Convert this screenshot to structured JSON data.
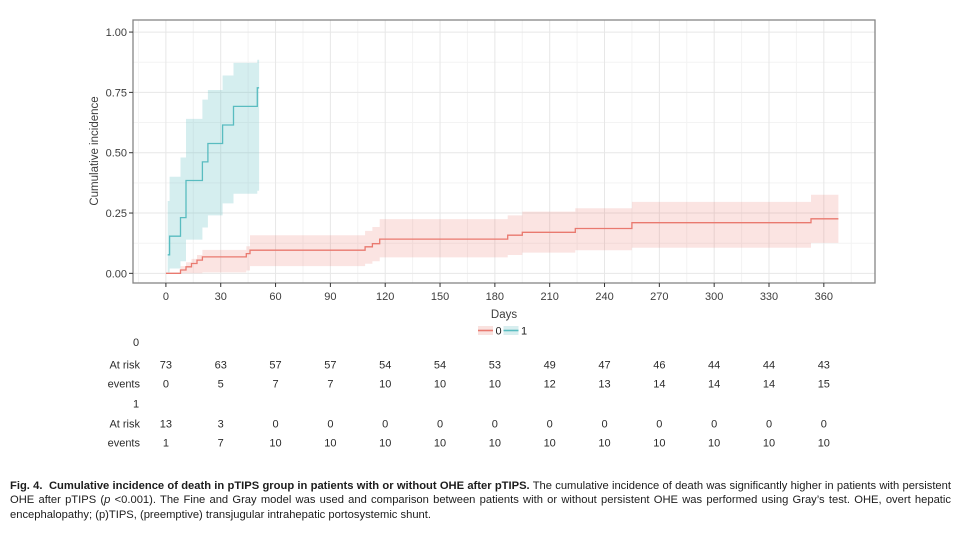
{
  "chart_data": {
    "type": "line",
    "subtype": "cumulative-incidence-step-with-confidence-bands",
    "title": "",
    "xlabel": "Days",
    "ylabel": "Cumulative incidence",
    "xlim": [
      -18,
      388
    ],
    "ylim": [
      -0.04,
      1.05
    ],
    "xticks": [
      0,
      30,
      60,
      90,
      120,
      150,
      180,
      210,
      240,
      270,
      300,
      330,
      360
    ],
    "yticks": [
      0,
      0.25,
      0.5,
      0.75,
      1
    ],
    "ytick_labels": [
      "0.00",
      "0.25",
      "0.50",
      "0.75",
      "1.00"
    ],
    "grid": "major and minor, light gray",
    "legend_position": "bottom",
    "legend": [
      {
        "label": "0",
        "line_color": "#E9796F",
        "band_color": "#F9E2DF"
      },
      {
        "label": "1",
        "line_color": "#59BCC0",
        "band_color": "#D8EEEF"
      }
    ],
    "series": [
      {
        "name": "0",
        "line_color": "#E9796F",
        "band_color": "rgba(233,121,111,0.20)",
        "steps": [
          [
            0,
            0
          ],
          [
            8,
            0.014
          ],
          [
            11,
            0.027
          ],
          [
            14,
            0.041
          ],
          [
            17,
            0.055
          ],
          [
            20,
            0.068
          ],
          [
            44,
            0.082
          ],
          [
            46,
            0.096
          ],
          [
            109,
            0.11
          ],
          [
            113,
            0.123
          ],
          [
            117,
            0.142
          ],
          [
            187,
            0.158
          ],
          [
            195,
            0.17
          ],
          [
            224,
            0.186
          ],
          [
            255,
            0.21
          ],
          [
            353,
            0.226
          ],
          [
            368,
            0.226
          ]
        ],
        "band_upper": [
          [
            8,
            0.03
          ],
          [
            11,
            0.046
          ],
          [
            14,
            0.06
          ],
          [
            17,
            0.076
          ],
          [
            20,
            0.097
          ],
          [
            44,
            0.112
          ],
          [
            46,
            0.158
          ],
          [
            109,
            0.176
          ],
          [
            113,
            0.192
          ],
          [
            117,
            0.225
          ],
          [
            187,
            0.24
          ],
          [
            195,
            0.256
          ],
          [
            224,
            0.27
          ],
          [
            255,
            0.296
          ],
          [
            353,
            0.326
          ],
          [
            368,
            0.326
          ]
        ],
        "band_lower": [
          [
            8,
            0
          ],
          [
            11,
            0
          ],
          [
            14,
            0
          ],
          [
            17,
            0
          ],
          [
            20,
            0.004
          ],
          [
            44,
            0.012
          ],
          [
            46,
            0.03
          ],
          [
            109,
            0.04
          ],
          [
            113,
            0.05
          ],
          [
            117,
            0.066
          ],
          [
            187,
            0.076
          ],
          [
            195,
            0.086
          ],
          [
            224,
            0.096
          ],
          [
            255,
            0.106
          ],
          [
            353,
            0.126
          ],
          [
            368,
            0.126
          ]
        ]
      },
      {
        "name": "1",
        "line_color": "#59BCC0",
        "band_color": "rgba(89,188,192,0.25)",
        "steps": [
          [
            1,
            0.077
          ],
          [
            2,
            0.154
          ],
          [
            8,
            0.231
          ],
          [
            11,
            0.385
          ],
          [
            20,
            0.462
          ],
          [
            23,
            0.538
          ],
          [
            31,
            0.615
          ],
          [
            37,
            0.692
          ],
          [
            50,
            0.769
          ],
          [
            51,
            0.769
          ]
        ],
        "band_upper": [
          [
            1,
            0.3
          ],
          [
            2,
            0.4
          ],
          [
            8,
            0.48
          ],
          [
            11,
            0.64
          ],
          [
            20,
            0.72
          ],
          [
            23,
            0.76
          ],
          [
            31,
            0.82
          ],
          [
            37,
            0.872
          ],
          [
            50,
            0.885
          ],
          [
            51,
            0.885
          ]
        ],
        "band_lower": [
          [
            1,
            0.004
          ],
          [
            2,
            0.02
          ],
          [
            8,
            0.05
          ],
          [
            11,
            0.14
          ],
          [
            20,
            0.19
          ],
          [
            23,
            0.24
          ],
          [
            31,
            0.29
          ],
          [
            37,
            0.33
          ],
          [
            50,
            0.342
          ],
          [
            51,
            0.342
          ]
        ]
      }
    ]
  },
  "risk_table": {
    "columns": [
      0,
      30,
      60,
      90,
      120,
      150,
      180,
      210,
      240,
      270,
      300,
      330,
      360
    ],
    "at_risk_label": "At risk",
    "events_label": "events",
    "groups": [
      {
        "label": "0",
        "at_risk": [
          73,
          63,
          57,
          57,
          54,
          54,
          53,
          49,
          47,
          46,
          44,
          44,
          43
        ],
        "events": [
          0,
          5,
          7,
          7,
          10,
          10,
          10,
          12,
          13,
          14,
          14,
          14,
          15
        ]
      },
      {
        "label": "1",
        "at_risk": [
          13,
          3,
          0,
          0,
          0,
          0,
          0,
          0,
          0,
          0,
          0,
          0,
          0
        ],
        "events": [
          1,
          7,
          10,
          10,
          10,
          10,
          10,
          10,
          10,
          10,
          10,
          10,
          10
        ]
      }
    ]
  },
  "caption": {
    "bold": "Fig. 4.  Cumulative incidence of death in pTIPS group in patients with or without OHE after pTIPS.",
    "text1": " The cumulative incidence of death was significantly higher in patients with persistent OHE after pTIPS (",
    "p_italic": "p",
    "text2": " <0.001). The Fine and Gray model was used and comparison between patients with or without persistent OHE was performed using Gray’s test. OHE, overt hepatic encephalopathy; (p)TIPS, (preemptive) transjugular intrahepatic portosystemic shunt."
  },
  "colors": {
    "group0_line": "#E9796F",
    "group1_line": "#59BCC0",
    "grid_major": "#E7E7E7",
    "grid_minor": "#F3F3F3",
    "panel_border": "#858585",
    "text": "#3d3d3d"
  }
}
